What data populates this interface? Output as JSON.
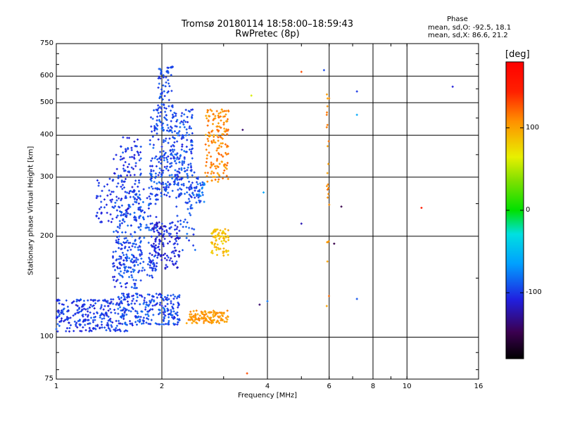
{
  "chart_data": {
    "type": "scatter",
    "title": "Tromsø 20180114 18:58:00–18:59:43",
    "subtitle": "RwPretec (8p)",
    "xlabel": "Frequency [MHz]",
    "ylabel": "Stationary phase Virtual Height [km]",
    "x_scale": "log",
    "y_scale": "log",
    "xlim": [
      1,
      16
    ],
    "ylim": [
      75,
      750
    ],
    "x_ticks": [
      1,
      2,
      4,
      6,
      8,
      10,
      16
    ],
    "y_ticks": [
      75,
      100,
      200,
      300,
      400,
      500,
      600,
      750
    ],
    "x_tick_labels": [
      "1",
      "2",
      "4",
      "6",
      "8",
      "10",
      "16"
    ],
    "y_tick_labels": [
      "75",
      "100",
      "200",
      "300",
      "400",
      "500",
      "600",
      "750"
    ],
    "grid": true,
    "phase_info": {
      "title": "Phase",
      "line_o": "mean, sd,O: -92.5, 18.1",
      "line_x": "mean, sd,X:  86.6, 21.2"
    },
    "colorbar": {
      "label": "[deg]",
      "range": [
        -180,
        180
      ],
      "ticks": [
        100,
        0,
        -100
      ],
      "tick_labels": [
        "100",
        "0",
        "-100"
      ]
    },
    "clusters": [
      {
        "x": [
          1.0,
          1.6
        ],
        "y": [
          104,
          130
        ],
        "n": 260,
        "phase": [
          -115,
          -85
        ]
      },
      {
        "x": [
          1.5,
          2.25
        ],
        "y": [
          108,
          135
        ],
        "n": 230,
        "phase": [
          -110,
          -80
        ]
      },
      {
        "x": [
          1.45,
          1.75
        ],
        "y": [
          140,
          400
        ],
        "n": 260,
        "phase": [
          -115,
          -85
        ]
      },
      {
        "x": [
          1.3,
          1.45
        ],
        "y": [
          220,
          300
        ],
        "n": 40,
        "phase": [
          -110,
          -95
        ]
      },
      {
        "x": [
          1.55,
          1.95
        ],
        "y": [
          150,
          280
        ],
        "n": 170,
        "phase": [
          -105,
          -80
        ]
      },
      {
        "x": [
          1.85,
          2.25
        ],
        "y": [
          160,
          220
        ],
        "n": 140,
        "phase": [
          -120,
          -95
        ]
      },
      {
        "x": [
          1.85,
          2.45
        ],
        "y": [
          260,
          480
        ],
        "n": 330,
        "phase": [
          -110,
          -80
        ]
      },
      {
        "x": [
          1.95,
          2.15
        ],
        "y": [
          480,
          640
        ],
        "n": 60,
        "phase": [
          -105,
          -85
        ]
      },
      {
        "x": [
          2.2,
          2.5
        ],
        "y": [
          180,
          320
        ],
        "n": 60,
        "phase": [
          -105,
          -80
        ]
      },
      {
        "x": [
          2.5,
          2.65
        ],
        "y": [
          250,
          300
        ],
        "n": 35,
        "phase": [
          -100,
          -70
        ]
      },
      {
        "x": [
          2.65,
          3.1
        ],
        "y": [
          290,
          480
        ],
        "n": 160,
        "phase": [
          95,
          125
        ]
      },
      {
        "x": [
          2.75,
          3.1
        ],
        "y": [
          175,
          210
        ],
        "n": 75,
        "phase": [
          75,
          100
        ]
      },
      {
        "x": [
          2.35,
          3.1
        ],
        "y": [
          110,
          120
        ],
        "n": 130,
        "phase": [
          95,
          115
        ]
      },
      {
        "x": [
          5.9,
          6.0
        ],
        "y": [
          120,
          600
        ],
        "n": 25,
        "phase": [
          100,
          120
        ]
      }
    ],
    "isolated_points": [
      {
        "x": 5.0,
        "y": 618,
        "phase": 130
      },
      {
        "x": 5.8,
        "y": 625,
        "phase": -95
      },
      {
        "x": 7.2,
        "y": 540,
        "phase": -100
      },
      {
        "x": 7.2,
        "y": 460,
        "phase": -60
      },
      {
        "x": 3.6,
        "y": 525,
        "phase": 60
      },
      {
        "x": 3.4,
        "y": 415,
        "phase": -140
      },
      {
        "x": 3.9,
        "y": 270,
        "phase": -60
      },
      {
        "x": 5.0,
        "y": 218,
        "phase": -120
      },
      {
        "x": 6.5,
        "y": 245,
        "phase": -150
      },
      {
        "x": 6.2,
        "y": 190,
        "phase": -150
      },
      {
        "x": 7.2,
        "y": 130,
        "phase": -90
      },
      {
        "x": 11.0,
        "y": 243,
        "phase": 150
      },
      {
        "x": 13.5,
        "y": 558,
        "phase": -110
      },
      {
        "x": 3.5,
        "y": 78,
        "phase": 130
      },
      {
        "x": 3.8,
        "y": 125,
        "phase": -140
      },
      {
        "x": 4.0,
        "y": 128,
        "phase": -80
      }
    ]
  }
}
